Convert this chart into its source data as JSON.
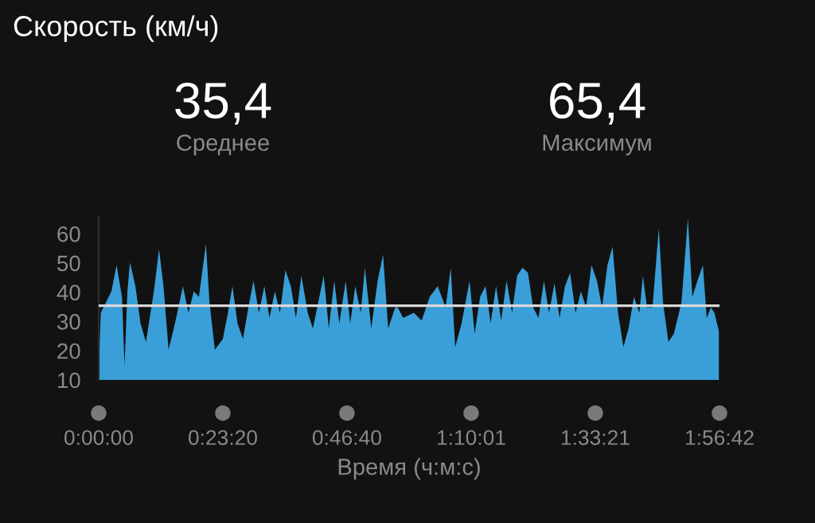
{
  "chart_data": {
    "type": "area",
    "title": "Скорость (км/ч)",
    "xlabel": "Время (ч:м:с)",
    "annotations": [
      "35,4",
      "Среднее",
      "65,4",
      "Максимум"
    ],
    "series": [
      {
        "color": "#3a9fd8",
        "x": [
          0,
          0.0066,
          0.023,
          0.04,
          0.056,
          0.073,
          0.081,
          0.09,
          0.098,
          0.115,
          0.131,
          0.148,
          0.173,
          0.189,
          0.203,
          0.219,
          0.239,
          0.264,
          0.281,
          0.298,
          0.314,
          0.336,
          0.347,
          0.364,
          0.389,
          0.405,
          0.419,
          0.435,
          0.452,
          0.469,
          0.485,
          0.502,
          0.519,
          0.535,
          0.552,
          0.568,
          0.585,
          0.602,
          0.618,
          0.635,
          0.655,
          0.671,
          0.688,
          0.705,
          0.721,
          0.738,
          0.754,
          0.774,
          0.788,
          0.804,
          0.821,
          0.834,
          0.854,
          0.874,
          0.891,
          0.907,
          0.929,
          0.937,
          0.954,
          0.987,
          1.012,
          1.037,
          1.062,
          1.087,
          1.103,
          1.117,
          1.137,
          1.162,
          1.178,
          1.195,
          1.212,
          1.228,
          1.245,
          1.261,
          1.278,
          1.295,
          1.311,
          1.328,
          1.345,
          1.361,
          1.378,
          1.395,
          1.411,
          1.428,
          1.444,
          1.461,
          1.477,
          1.494,
          1.511,
          1.527,
          1.544,
          1.561,
          1.577,
          1.594,
          1.61,
          1.627,
          1.644,
          1.66,
          1.677,
          1.694,
          1.705,
          1.718,
          1.735,
          1.755,
          1.768,
          1.785,
          1.802,
          1.826,
          1.846,
          1.86,
          1.876,
          1.893,
          1.905,
          1.918,
          1.929,
          1.943
        ],
        "values": [
          13.1,
          33.0,
          36.6,
          40.3,
          49.3,
          38.4,
          14.9,
          40.3,
          50.2,
          42.1,
          29.4,
          23.0,
          40.3,
          54.7,
          42.1,
          20.3,
          29.4,
          42.1,
          33.0,
          40.3,
          38.4,
          56.6,
          36.6,
          20.3,
          24.0,
          33.0,
          42.1,
          29.4,
          24.0,
          34.8,
          43.9,
          33.0,
          42.1,
          31.2,
          40.3,
          33.0,
          47.5,
          42.1,
          31.2,
          45.7,
          33.0,
          27.6,
          36.6,
          45.7,
          27.6,
          43.9,
          29.4,
          43.9,
          29.4,
          42.1,
          33.0,
          48.4,
          27.6,
          43.9,
          52.9,
          27.6,
          34.8,
          34.8,
          31.2,
          33.0,
          30.3,
          38.4,
          42.1,
          34.8,
          48.4,
          21.2,
          29.4,
          43.9,
          25.8,
          38.4,
          42.1,
          29.4,
          42.1,
          30.3,
          43.9,
          33.0,
          45.7,
          48.4,
          46.6,
          34.8,
          31.2,
          43.9,
          33.0,
          43.0,
          31.2,
          42.1,
          46.6,
          33.0,
          40.3,
          34.8,
          49.3,
          43.9,
          34.8,
          49.3,
          55.6,
          33.0,
          21.2,
          27.6,
          38.4,
          33.0,
          45.7,
          34.8,
          34.8,
          62.0,
          36.6,
          23.0,
          25.8,
          36.6,
          65.4,
          38.4,
          43.9,
          49.3,
          31.2,
          34.8,
          33.0,
          26.7
        ]
      }
    ],
    "ref_lines": [
      {
        "axis": "y",
        "value": 35.4,
        "color": "#d8d8d8"
      }
    ],
    "xlim": [
      0,
      1.945
    ],
    "xticks": [
      {
        "value": 0,
        "label": "0:00:00"
      },
      {
        "value": 0.38889,
        "label": "0:23:20"
      },
      {
        "value": 0.77778,
        "label": "0:46:40"
      },
      {
        "value": 1.16694,
        "label": "1:10:01"
      },
      {
        "value": 1.55583,
        "label": "1:33:21"
      },
      {
        "value": 1.945,
        "label": "1:56:42"
      }
    ],
    "ylim": [
      10,
      66
    ],
    "yticks": [
      10,
      20,
      30,
      40,
      50,
      60
    ],
    "grid": false,
    "legend": false
  }
}
